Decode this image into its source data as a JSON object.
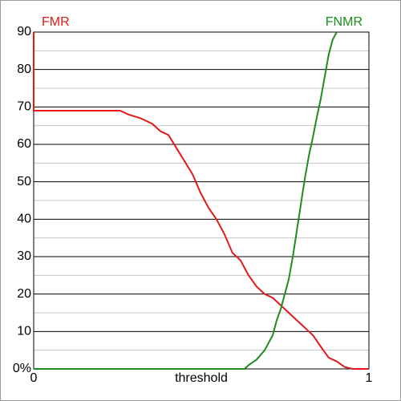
{
  "chart_data": {
    "type": "line",
    "x_label": "threshold",
    "xlim": [
      0,
      1
    ],
    "xticks": [
      0,
      1
    ],
    "ylim": [
      0,
      90
    ],
    "yticks": [
      {
        "value": 0,
        "label": "0%"
      },
      10,
      20,
      30,
      40,
      50,
      60,
      70,
      80,
      90
    ],
    "minor_yticks": [
      5,
      15,
      25,
      35,
      45,
      55,
      65,
      75,
      85
    ],
    "grid": true,
    "series": [
      {
        "name": "FMR",
        "color": "#e31a1a",
        "x": [
          0,
          0,
          0.258,
          0.282,
          0.318,
          0.354,
          0.378,
          0.402,
          0.426,
          0.45,
          0.474,
          0.498,
          0.522,
          0.545,
          0.569,
          0.593,
          0.617,
          0.641,
          0.665,
          0.689,
          0.713,
          0.737,
          0.761,
          0.785,
          0.809,
          0.833,
          0.856,
          0.88,
          0.904,
          0.928,
          0.952,
          1
        ],
        "values": [
          90,
          69,
          69,
          68,
          67,
          65.5,
          63.5,
          62.5,
          59,
          55.5,
          52,
          47,
          43,
          40,
          36,
          31,
          29,
          25,
          22,
          20,
          19,
          17,
          15,
          13,
          11,
          9,
          6,
          3,
          2,
          0.5,
          0,
          0
        ]
      },
      {
        "name": "FNMR",
        "color": "#1e8c1e",
        "x": [
          0,
          0.629,
          0.641,
          0.665,
          0.689,
          0.713,
          0.725,
          0.737,
          0.749,
          0.761,
          0.773,
          0.785,
          0.797,
          0.809,
          0.821,
          0.833,
          0.844,
          0.856,
          0.868,
          0.88,
          0.892,
          0.904
        ],
        "values": [
          0,
          0,
          1,
          2.5,
          5,
          9,
          13,
          16,
          20,
          24,
          30,
          37,
          44,
          51,
          57,
          62,
          67,
          72,
          78,
          84,
          88,
          90
        ]
      }
    ]
  }
}
